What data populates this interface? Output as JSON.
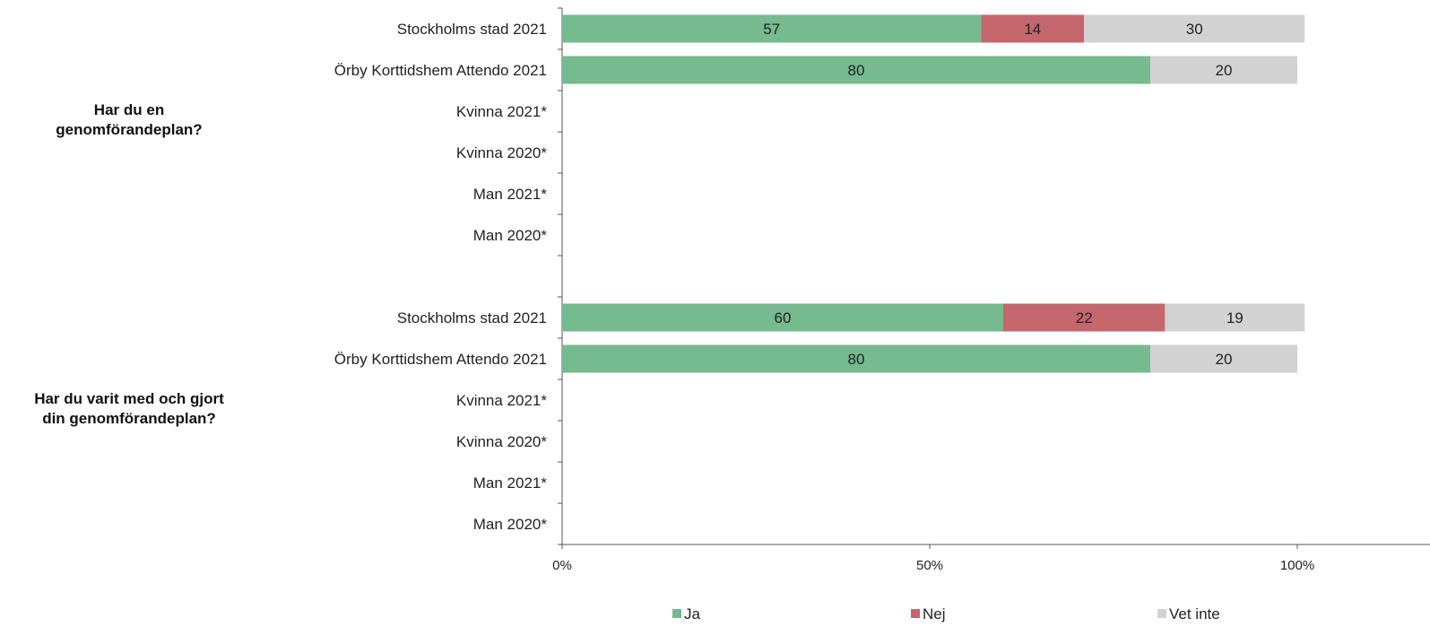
{
  "chart_data": {
    "type": "bar",
    "orientation": "horizontal",
    "stacked": true,
    "xlim": [
      0,
      120
    ],
    "x_ticks": [
      0,
      50,
      100
    ],
    "x_tick_labels": [
      "0%",
      "50%",
      "100%"
    ],
    "grid": false,
    "legend_position": "bottom",
    "series": [
      {
        "name": "Ja",
        "color": "#76BA8F"
      },
      {
        "name": "Nej",
        "color": "#C5666D"
      },
      {
        "name": "Vet inte",
        "color": "#D2D2D2"
      }
    ],
    "groups": [
      {
        "label_lines": [
          "Har du en",
          "genomförandeplan?"
        ],
        "rows": [
          {
            "label": "Stockholms stad 2021",
            "values": [
              57,
              14,
              30
            ]
          },
          {
            "label": "Örby Korttidshem Attendo 2021",
            "values": [
              80,
              0,
              20
            ]
          },
          {
            "label": "Kvinna 2021*",
            "values": []
          },
          {
            "label": "Kvinna 2020*",
            "values": []
          },
          {
            "label": "Man 2021*",
            "values": []
          },
          {
            "label": "Man 2020*",
            "values": []
          }
        ]
      },
      {
        "label_lines": [
          "Har du varit med och gjort",
          "din genomförandeplan?"
        ],
        "rows": [
          {
            "label": "Stockholms stad 2021",
            "values": [
              60,
              22,
              19
            ]
          },
          {
            "label": "Örby Korttidshem Attendo 2021",
            "values": [
              80,
              0,
              20
            ]
          },
          {
            "label": "Kvinna 2021*",
            "values": []
          },
          {
            "label": "Kvinna 2020*",
            "values": []
          },
          {
            "label": "Man 2021*",
            "values": []
          },
          {
            "label": "Man 2020*",
            "values": []
          }
        ]
      }
    ]
  }
}
